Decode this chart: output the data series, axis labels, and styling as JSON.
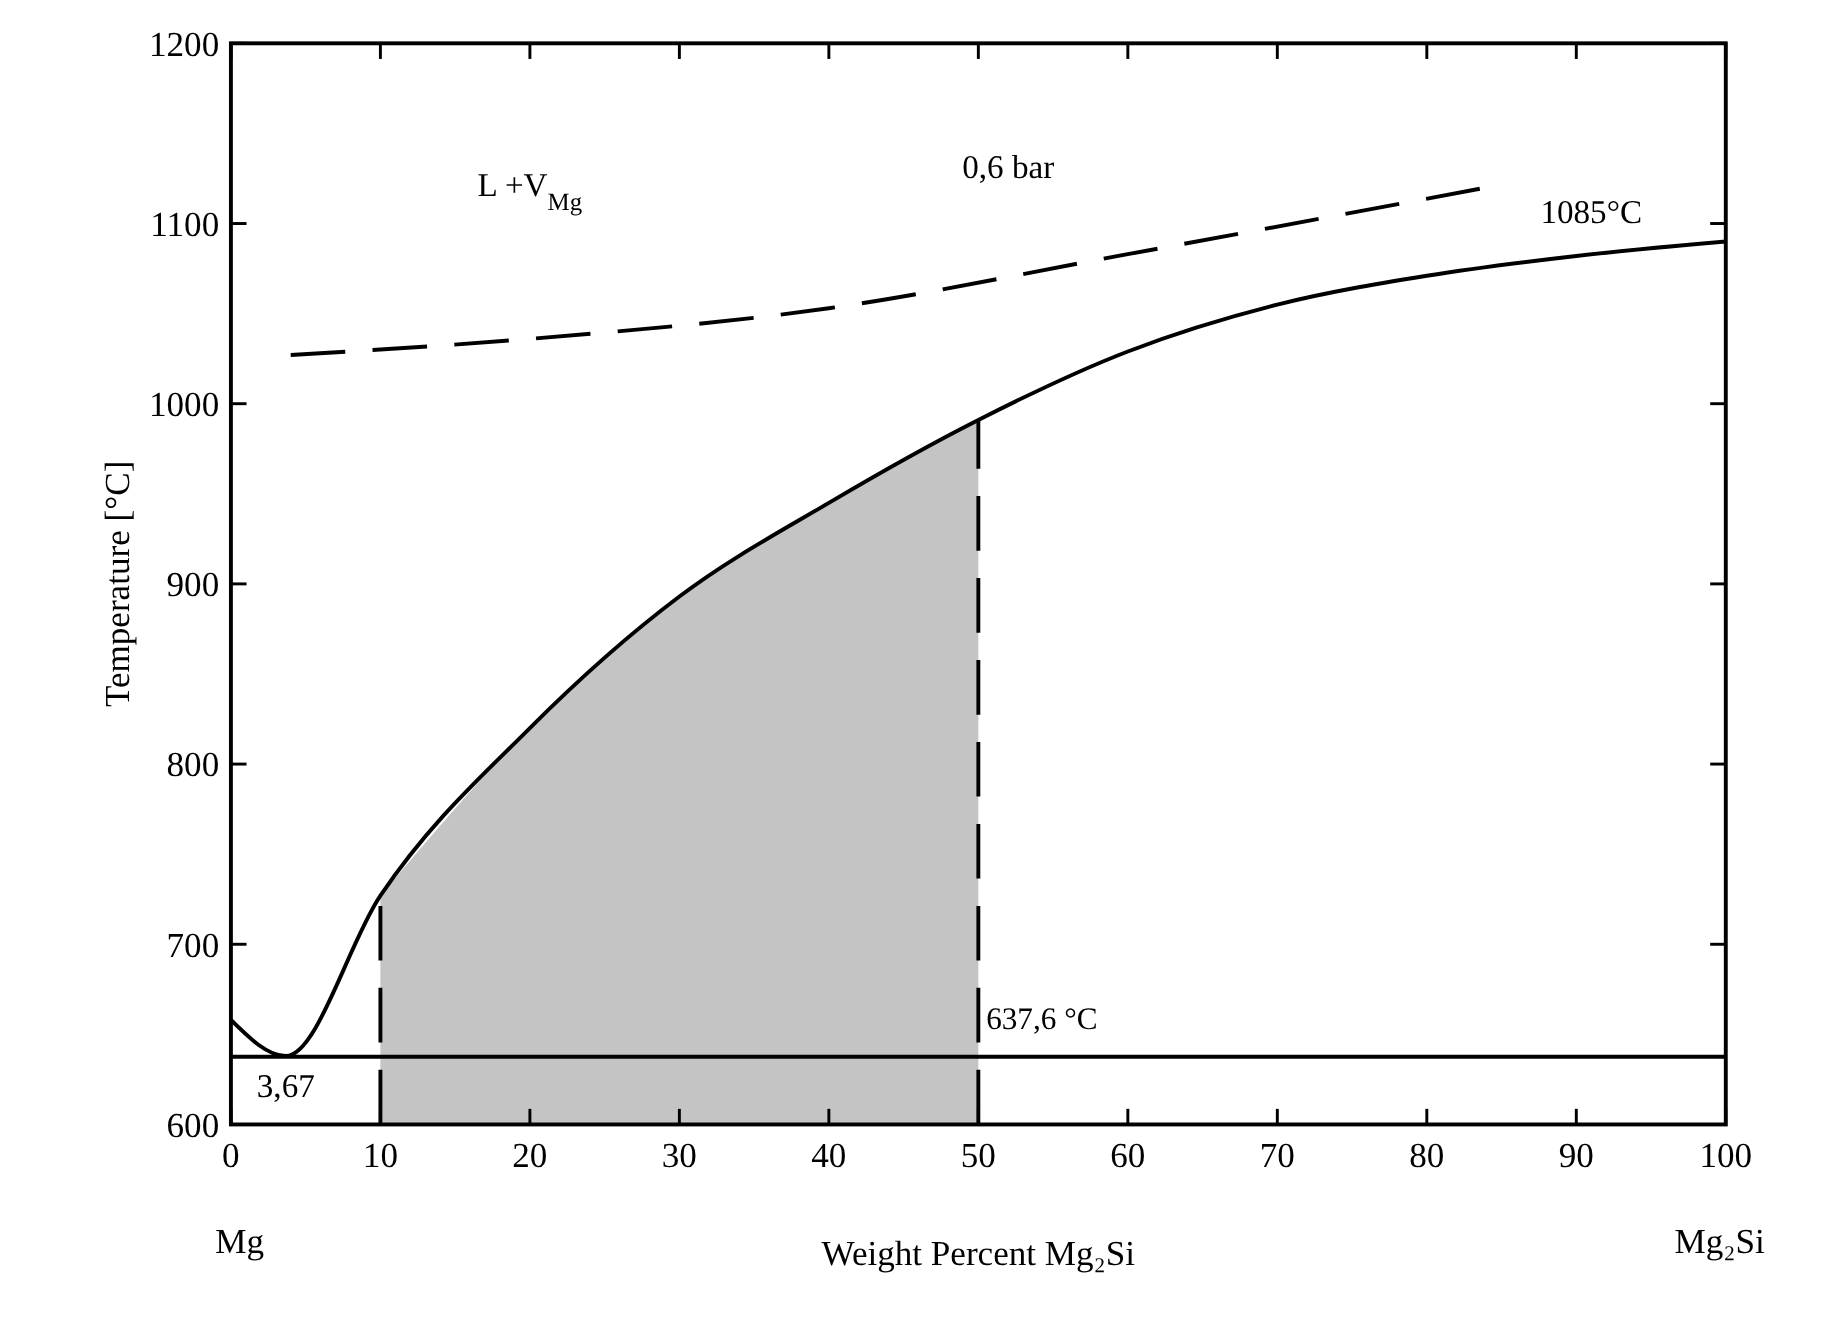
{
  "chart_data": {
    "type": "line",
    "xlabel": "Weight Percent Mg₂Si",
    "ylabel": "Temperature [°C]",
    "xlim": [
      0,
      100
    ],
    "xticks": [
      0,
      10,
      20,
      30,
      40,
      50,
      60,
      70,
      80,
      90,
      100
    ],
    "ylim": [
      600,
      1200
    ],
    "yticks": [
      600,
      700,
      800,
      900,
      1000,
      1100,
      1200
    ],
    "series": [
      {
        "type": "area",
        "color": "#c4c4c4",
        "x": [
          10,
          20,
          30,
          40,
          50
        ],
        "values": [
          727,
          820,
          893,
          945,
          991
        ]
      },
      {
        "color": "#000000",
        "x": [
          0,
          3.67,
          10,
          20,
          30,
          40,
          50,
          60,
          70,
          80,
          90,
          100
        ],
        "values": [
          658,
          638,
          727,
          820,
          893,
          945,
          991,
          1029,
          1055,
          1071,
          1082,
          1090
        ]
      },
      {
        "color": "#000000",
        "line_style": "dashed",
        "x": [
          4,
          20,
          40,
          60,
          84
        ],
        "values": [
          1027,
          1036,
          1053,
          1083,
          1120
        ]
      }
    ],
    "ref_lines": [
      {
        "axis": "y",
        "value": 637.6,
        "label": "637,6 °C",
        "color": "#000000",
        "line_style": "solid"
      },
      {
        "axis": "x",
        "value": 10,
        "color": "#000000",
        "line_style": "dashed"
      },
      {
        "axis": "x",
        "value": 50,
        "color": "#000000",
        "line_style": "dashed"
      }
    ],
    "annotations": [
      "L +V$_{Mg}$",
      "0,6 bar",
      "1085°C",
      "3,67",
      "Mg",
      "Mg₂Si"
    ]
  }
}
